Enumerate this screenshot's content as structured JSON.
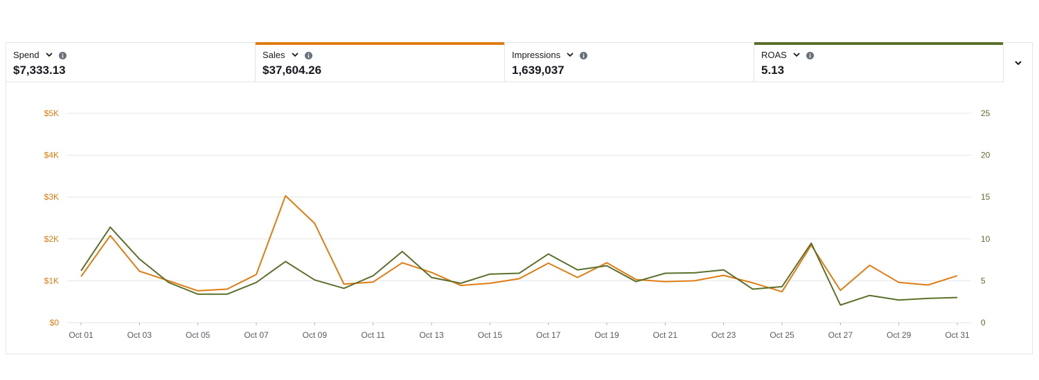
{
  "metrics": [
    {
      "label": "Spend",
      "value": "$7,333.13",
      "bar_color": ""
    },
    {
      "label": "Sales",
      "value": "$37,604.26",
      "bar_color": "#e07b10"
    },
    {
      "label": "Impressions",
      "value": "1,639,037",
      "bar_color": ""
    },
    {
      "label": "ROAS",
      "value": "5.13",
      "bar_color": "#5a6f2a"
    }
  ],
  "colors": {
    "sales": "#e07b10",
    "roas": "#5a6f2a",
    "grid": "#e3e6e8",
    "text_muted": "#545b64"
  },
  "chart_data": {
    "type": "line",
    "x": [
      "Oct 01",
      "Oct 02",
      "Oct 03",
      "Oct 04",
      "Oct 05",
      "Oct 06",
      "Oct 07",
      "Oct 08",
      "Oct 09",
      "Oct 10",
      "Oct 11",
      "Oct 12",
      "Oct 13",
      "Oct 14",
      "Oct 15",
      "Oct 16",
      "Oct 17",
      "Oct 18",
      "Oct 19",
      "Oct 20",
      "Oct 21",
      "Oct 22",
      "Oct 23",
      "Oct 24",
      "Oct 25",
      "Oct 26",
      "Oct 27",
      "Oct 28",
      "Oct 29",
      "Oct 30",
      "Oct 31"
    ],
    "x_tick_labels": [
      "Oct 01",
      "Oct 03",
      "Oct 05",
      "Oct 07",
      "Oct 09",
      "Oct 11",
      "Oct 13",
      "Oct 15",
      "Oct 17",
      "Oct 19",
      "Oct 21",
      "Oct 23",
      "Oct 25",
      "Oct 27",
      "Oct 29",
      "Oct 31"
    ],
    "y_left": {
      "ticks": [
        "$0",
        "$1K",
        "$2K",
        "$3K",
        "$4K",
        "$5K"
      ],
      "range": [
        0,
        5000
      ]
    },
    "y_right": {
      "ticks": [
        "0",
        "5",
        "10",
        "15",
        "20",
        "25"
      ],
      "range": [
        0,
        25
      ]
    },
    "series": [
      {
        "name": "Sales",
        "axis": "left",
        "values": [
          1100,
          2080,
          1230,
          1000,
          760,
          800,
          1150,
          3030,
          2370,
          920,
          970,
          1430,
          1200,
          890,
          940,
          1050,
          1420,
          1080,
          1430,
          1030,
          980,
          1000,
          1130,
          950,
          740,
          1850,
          770,
          1370,
          960,
          900,
          1120
        ]
      },
      {
        "name": "ROAS",
        "axis": "right",
        "values": [
          6.2,
          11.4,
          7.6,
          4.8,
          3.4,
          3.4,
          4.8,
          7.3,
          5.1,
          4.1,
          5.6,
          8.5,
          5.4,
          4.7,
          5.8,
          5.9,
          8.2,
          6.3,
          6.8,
          4.9,
          5.9,
          5.95,
          6.3,
          4.0,
          4.3,
          9.5,
          2.1,
          3.25,
          2.7,
          2.9,
          3.0
        ]
      }
    ],
    "grid": true
  }
}
